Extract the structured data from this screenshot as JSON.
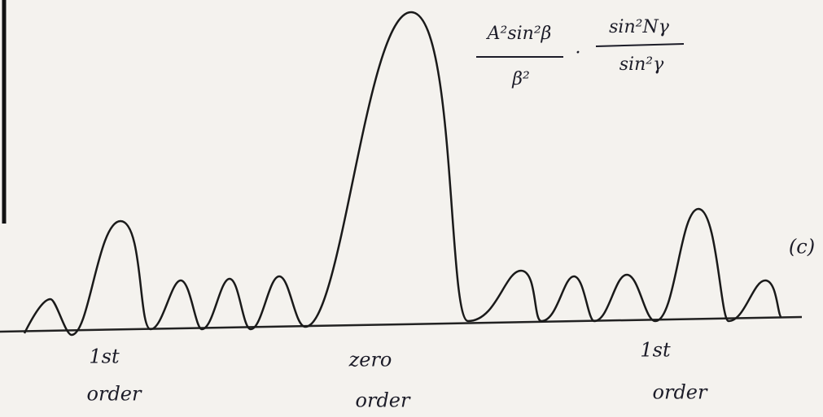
{
  "formula": {
    "left_numerator": "A²sin²β",
    "left_denominator": "β²",
    "separator": "·",
    "right_numerator": "sin²Nγ",
    "right_denominator": "sin²γ"
  },
  "figure_label": "(c)",
  "peak_labels": [
    {
      "lines": [
        "1st",
        "order"
      ]
    },
    {
      "lines": [
        "zero",
        "order"
      ]
    },
    {
      "lines": [
        "1st",
        "order"
      ]
    }
  ]
}
